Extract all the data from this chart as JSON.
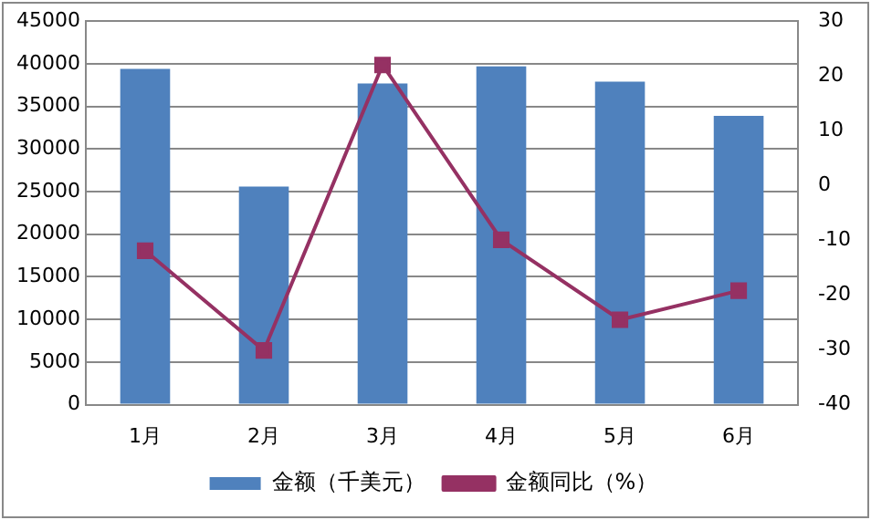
{
  "chart_data": {
    "type": "bar",
    "categories": [
      "1月",
      "2月",
      "3月",
      "4月",
      "5月",
      "6月"
    ],
    "series": [
      {
        "name": "金额（千美元）",
        "color": "#4f81bd",
        "values": [
          39400,
          25600,
          37700,
          39700,
          37900,
          33900
        ]
      },
      {
        "name": "金额同比（%）",
        "type": "line",
        "axis": "y2",
        "color": "#953163",
        "values": [
          -11.9,
          -30.1,
          22,
          -9.9,
          -24.5,
          -19.2
        ]
      }
    ],
    "ylim": [
      0,
      45000
    ],
    "yticks": [
      0,
      5000,
      10000,
      15000,
      20000,
      25000,
      30000,
      35000,
      40000,
      45000
    ],
    "y2lim": [
      -40,
      30
    ],
    "y2ticks": [
      -40,
      -30,
      -20,
      -10,
      0,
      10,
      20,
      30
    ],
    "grid": "y",
    "legend": "bottom",
    "marker": "square"
  }
}
